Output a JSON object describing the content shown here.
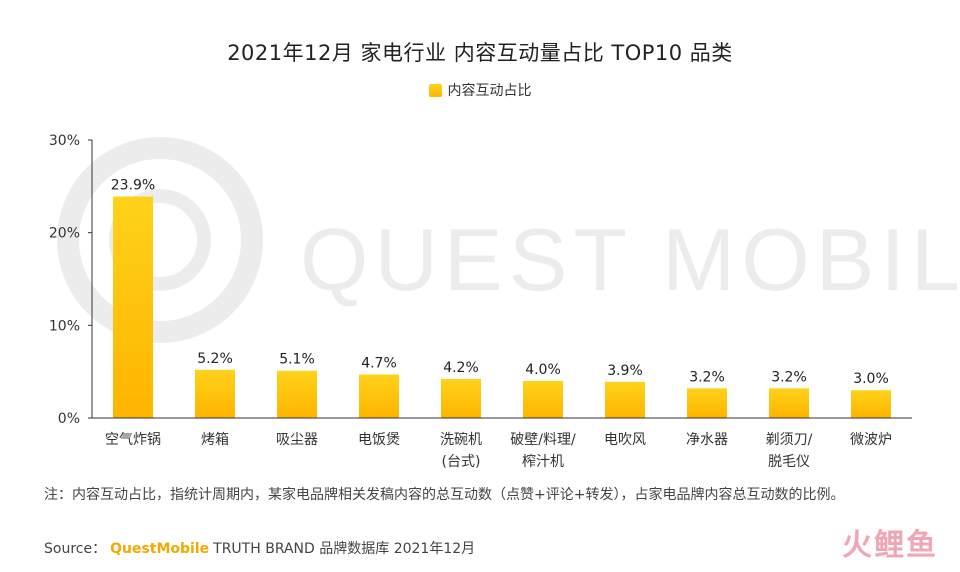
{
  "title": "2021年12月 家电行业 内容互动量占比 TOP10 品类",
  "legend": {
    "label": "内容互动占比",
    "color": "#FFC107"
  },
  "watermark": "QUEST MOBILE",
  "note": "注：内容互动占比，指统计周期内，某家电品牌相关发稿内容的总互动数（点赞+评论+转发），占家电品牌内容总互动数的比例。",
  "source": {
    "prefix": "Source：",
    "brand": "QuestMobile",
    "rest": "TRUTH BRAND 品牌数据库 2021年12月"
  },
  "logo": {
    "text": "火鲤鱼"
  },
  "chart_data": {
    "type": "bar",
    "categories": [
      "空气炸锅",
      "烤箱",
      "吸尘器",
      "电饭煲",
      "洗碗机\n(台式)",
      "破壁/料理/\n榨汁机",
      "电吹风",
      "净水器",
      "剃须刀/\n脱毛仪",
      "微波炉"
    ],
    "series": [
      {
        "name": "内容互动占比",
        "values": [
          23.9,
          5.2,
          5.1,
          4.7,
          4.2,
          4.0,
          3.9,
          3.2,
          3.2,
          3.0
        ]
      }
    ],
    "data_labels": [
      "23.9%",
      "5.2%",
      "5.1%",
      "4.7%",
      "4.2%",
      "4.0%",
      "3.9%",
      "3.2%",
      "3.2%",
      "3.0%"
    ],
    "y_ticks": [
      "0%",
      "10%",
      "20%",
      "30%"
    ],
    "y_tick_values": [
      0,
      10,
      20,
      30
    ],
    "ylim": [
      0,
      30
    ],
    "grid": false,
    "legend_position": "top-center",
    "bar_color_top": "#FFD21A",
    "bar_color_bottom": "#FFB400"
  }
}
